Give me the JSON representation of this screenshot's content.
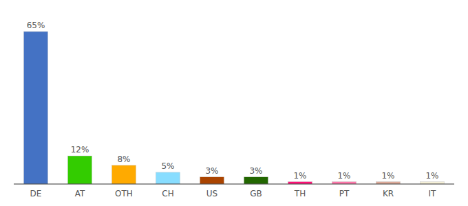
{
  "chart_data": {
    "type": "bar",
    "categories": [
      "DE",
      "AT",
      "OTH",
      "CH",
      "US",
      "GB",
      "TH",
      "PT",
      "KR",
      "IT"
    ],
    "values": [
      65,
      12,
      8,
      5,
      3,
      3,
      1,
      1,
      1,
      1
    ],
    "value_labels": [
      "65%",
      "12%",
      "8%",
      "5%",
      "3%",
      "3%",
      "1%",
      "1%",
      "1%",
      "1%"
    ],
    "colors": [
      "#4472c4",
      "#33cc00",
      "#ffaa00",
      "#88ddff",
      "#aa4400",
      "#226600",
      "#ff1177",
      "#ff77aa",
      "#ddaa99",
      "#f5f0d8"
    ],
    "ylim": [
      0,
      72
    ],
    "data_labels": true,
    "tick_labels": "x"
  }
}
